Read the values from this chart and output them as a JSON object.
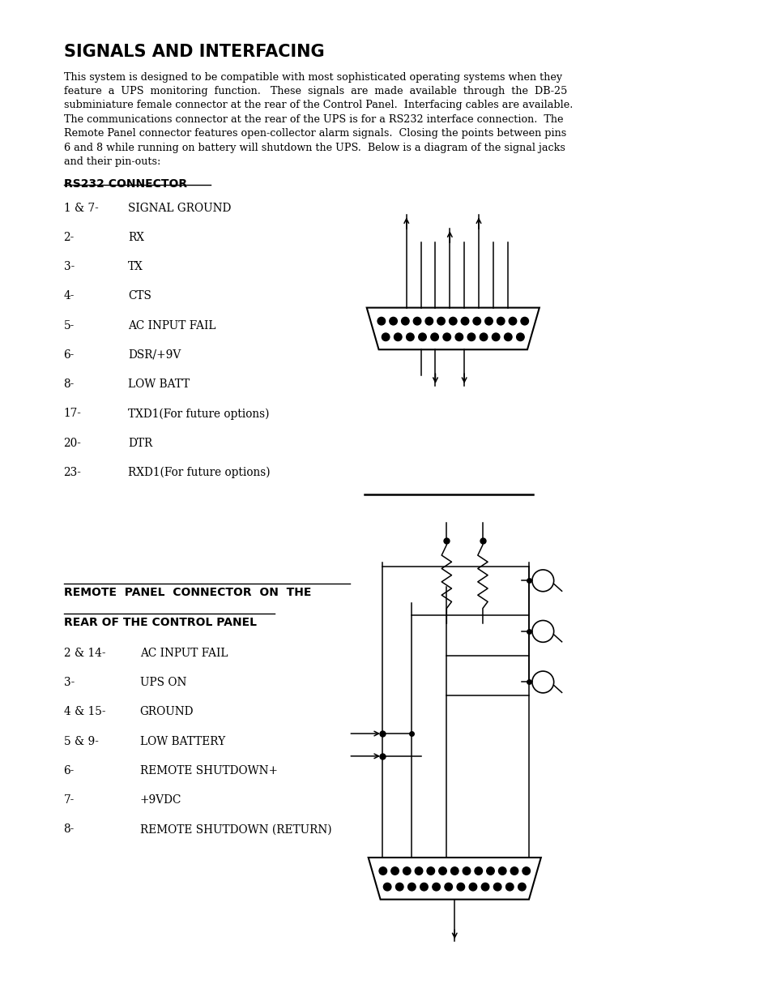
{
  "title": "SIGNALS AND INTERFACING",
  "body_lines": [
    "This system is designed to be compatible with most sophisticated operating systems when they",
    "feature  a  UPS  monitoring  function.   These  signals  are  made  available  through  the  DB-25",
    "subminiature female connector at the rear of the Control Panel.  Interfacing cables are available.",
    "The communications connector at the rear of the UPS is for a RS232 interface connection.  The",
    "Remote Panel connector features open-collector alarm signals.  Closing the points between pins",
    "6 and 8 while running on battery will shutdown the UPS.  Below is a diagram of the signal jacks",
    "and their pin-outs:"
  ],
  "rs232_header": "RS232 CONNECTOR",
  "rs232_pins": [
    [
      "1 & 7-",
      "SIGNAL GROUND"
    ],
    [
      "2-",
      "RX"
    ],
    [
      "3-",
      "TX"
    ],
    [
      "4-",
      "CTS"
    ],
    [
      "5-",
      "AC INPUT FAIL"
    ],
    [
      "6-",
      "DSR/+9V"
    ],
    [
      "8-",
      "LOW BATT"
    ],
    [
      "17-",
      "TXD1(For future options)"
    ],
    [
      "20-",
      "DTR"
    ],
    [
      "23-",
      "RXD1(For future options)"
    ]
  ],
  "remote_header1": "REMOTE  PANEL  CONNECTOR  ON  THE",
  "remote_header2": "REAR OF THE CONTROL PANEL",
  "remote_pins": [
    [
      "2 & 14-",
      "AC INPUT FAIL"
    ],
    [
      "3-",
      "UPS ON"
    ],
    [
      "4 & 15-",
      "GROUND"
    ],
    [
      "5 & 9-",
      "LOW BATTERY"
    ],
    [
      "6-",
      "REMOTE SHUTDOWN+"
    ],
    [
      "7-",
      "+9VDC"
    ],
    [
      "8-",
      "REMOTE SHUTDOWN (RETURN)"
    ]
  ],
  "bg_color": "#ffffff",
  "text_color": "#000000"
}
